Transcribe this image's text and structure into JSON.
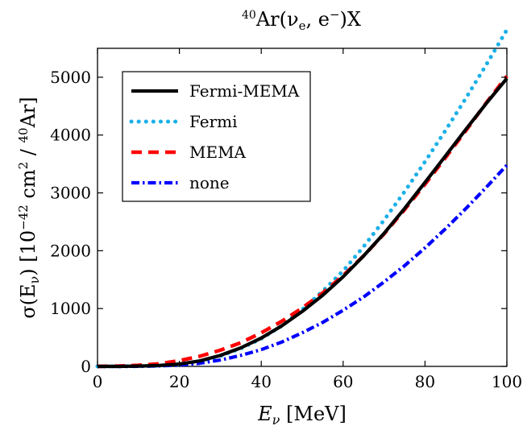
{
  "chart_data": {
    "type": "line",
    "title": {
      "sup": "40",
      "text": "Ar(ν",
      "sub": "e",
      "rest": ", e",
      "sup2": "−",
      "end": ")X"
    },
    "xlabel": {
      "base": "E",
      "sub": "ν",
      "rest": " [MeV]"
    },
    "ylabel": {
      "part1": "σ(E",
      "sub": "ν",
      "part2": ") [10",
      "sup1": "−42",
      "part3": " cm",
      "sup2": "2",
      "part4": " / ",
      "sup3": "40",
      "part5": "Ar]"
    },
    "xlim": [
      0,
      100
    ],
    "ylim": [
      0,
      5500
    ],
    "xticks": [
      0,
      20,
      40,
      60,
      80,
      100
    ],
    "yticks": [
      0,
      1000,
      2000,
      3000,
      4000,
      5000
    ],
    "grid": false,
    "legend_position": "top-left",
    "x": [
      0,
      5,
      10,
      15,
      20,
      25,
      30,
      35,
      40,
      45,
      50,
      55,
      60,
      65,
      70,
      75,
      80,
      85,
      90,
      95,
      100
    ],
    "series": [
      {
        "name": "Fermi-MEMA",
        "color": "#000000",
        "dash": "solid",
        "values": [
          0,
          0,
          5,
          15,
          40,
          95,
          190,
          320,
          490,
          700,
          950,
          1230,
          1550,
          1910,
          2300,
          2730,
          3180,
          3640,
          4100,
          4550,
          4980
        ]
      },
      {
        "name": "Fermi",
        "color": "#1ab0e8",
        "dash": "dotted",
        "values": [
          0,
          0,
          3,
          12,
          35,
          90,
          180,
          310,
          480,
          700,
          980,
          1300,
          1650,
          2070,
          2530,
          3020,
          3540,
          4080,
          4640,
          5220,
          5820
        ]
      },
      {
        "name": "MEMA",
        "color": "#ff0000",
        "dash": "dashed",
        "values": [
          0,
          5,
          20,
          45,
          100,
          175,
          280,
          410,
          580,
          780,
          1010,
          1270,
          1570,
          1910,
          2290,
          2710,
          3150,
          3610,
          4080,
          4560,
          5020
        ]
      },
      {
        "name": "none",
        "color": "#0000ff",
        "dash": "dashdot",
        "values": [
          0,
          0,
          2,
          8,
          22,
          55,
          110,
          190,
          290,
          420,
          580,
          760,
          970,
          1200,
          1460,
          1740,
          2050,
          2380,
          2730,
          3100,
          3480
        ]
      }
    ]
  }
}
